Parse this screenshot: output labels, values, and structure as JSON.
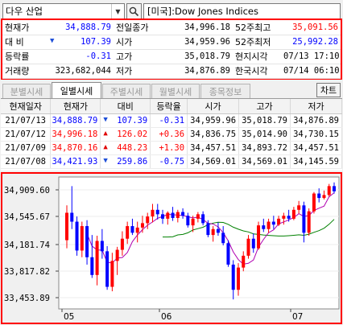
{
  "search": {
    "symbol": "다우 산업",
    "title": "[미국]:Dow Jones Indices"
  },
  "quote": {
    "rows": [
      {
        "l1": "현재가",
        "v1": "34,888.79",
        "c1": "blue",
        "l2": "전일종가",
        "v2": "34,996.18",
        "c2": "",
        "l3": "52주최고",
        "v3": "35,091.56",
        "c3": "red"
      },
      {
        "l1": "대   비",
        "v1": "107.39",
        "c1": "blue",
        "tri": "▼",
        "l2": "시가",
        "v2": "34,959.96",
        "c2": "",
        "l3": "52주최저",
        "v3": "25,992.28",
        "c3": "blue"
      },
      {
        "l1": "등락률",
        "v1": "-0.31",
        "c1": "blue",
        "l2": "고가",
        "v2": "35,018.79",
        "c2": "",
        "l3": "현지시각",
        "v3": "07/13 17:10",
        "c3": ""
      },
      {
        "l1": "거래량",
        "v1": "323,682,044",
        "c1": "",
        "l2": "저가",
        "v2": "34,876.89",
        "c2": "",
        "l3": "한국시각",
        "v3": "07/14 06:10",
        "c3": ""
      }
    ]
  },
  "tabs": [
    "분별시세",
    "일별시세",
    "주별시세",
    "월별시세",
    "종목정보"
  ],
  "active_tab": 1,
  "chart_button": "차트",
  "daily": {
    "headers": [
      "현재일자",
      "현재가",
      "대비",
      "등락율",
      "시가",
      "고가",
      "저가"
    ],
    "rows": [
      {
        "date": "21/07/13",
        "close": "34,888.79",
        "dir": "down",
        "chg": "107.39",
        "pct": "-0.31",
        "open": "34,959.96",
        "high": "35,018.79",
        "low": "34,876.89"
      },
      {
        "date": "21/07/12",
        "close": "34,996.18",
        "dir": "up",
        "chg": "126.02",
        "pct": "+0.36",
        "open": "34,836.75",
        "high": "35,014.90",
        "low": "34,730.15"
      },
      {
        "date": "21/07/09",
        "close": "34,870.16",
        "dir": "up",
        "chg": "448.23",
        "pct": "+1.30",
        "open": "34,457.51",
        "high": "34,893.72",
        "low": "34,457.51"
      },
      {
        "date": "21/07/08",
        "close": "34,421.93",
        "dir": "down",
        "chg": "259.86",
        "pct": "-0.75",
        "open": "34,569.01",
        "high": "34,569.01",
        "low": "34,145.59"
      }
    ]
  },
  "chart": {
    "y_ticks": [
      "34,909.60",
      "34,545.67",
      "34,181.74",
      "33,817.82",
      "33,453.89"
    ],
    "x_labels": [
      "05",
      "06",
      "07"
    ],
    "colors": {
      "up": "#ff0000",
      "down": "#0000ff",
      "ma_fast": "#b000b0",
      "ma_slow": "#008000"
    }
  }
}
